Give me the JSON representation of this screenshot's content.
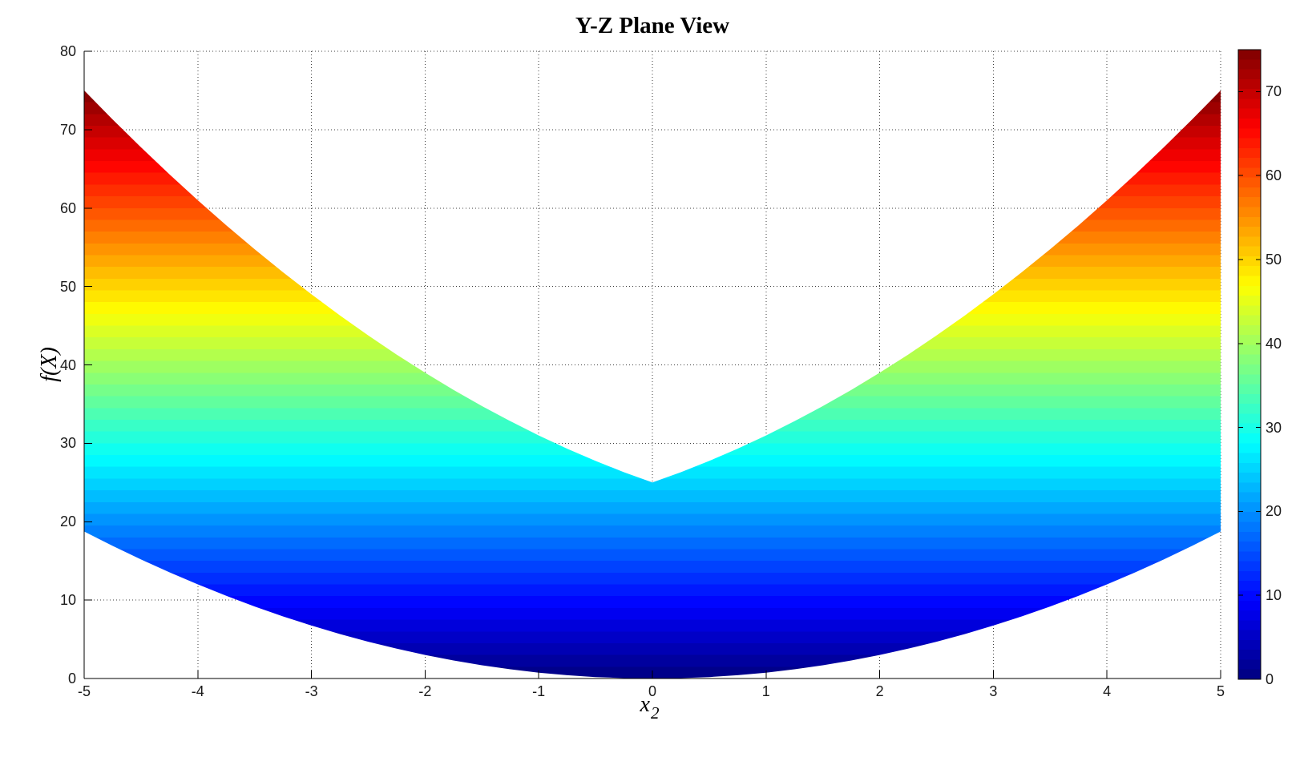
{
  "chart_data": {
    "type": "area",
    "title": "Y-Z Plane View",
    "xlabel": "x_2",
    "xlabel_base": "x",
    "xlabel_sub": "2",
    "ylabel": "f(X)",
    "xlim": [
      -5,
      5
    ],
    "ylim": [
      0,
      80
    ],
    "x_ticks": [
      -5,
      -4,
      -3,
      -2,
      -1,
      0,
      1,
      2,
      3,
      4,
      5
    ],
    "y_ticks": [
      0,
      10,
      20,
      30,
      40,
      50,
      60,
      70,
      80
    ],
    "grid": "dotted",
    "legend": "none",
    "colormap": "jet",
    "color_low": "#00008F",
    "color_high": "#800000",
    "color_range": [
      0,
      75
    ],
    "color_bands": 50,
    "colorbar_ticks": [
      0,
      10,
      20,
      30,
      40,
      50,
      60,
      70
    ],
    "description": "Side (Y-Z plane) projection of a quadratic surface: filled region between lower_edge and upper_edge versus x2, color-mapped by f(X) value with a jet colormap.",
    "x": [
      -5,
      -4.75,
      -4.5,
      -4.25,
      -4,
      -3.75,
      -3.5,
      -3.25,
      -3,
      -2.75,
      -2.5,
      -2.25,
      -2,
      -1.75,
      -1.5,
      -1.25,
      -1,
      -0.75,
      -0.5,
      -0.25,
      0,
      0.25,
      0.5,
      0.75,
      1,
      1.25,
      1.5,
      1.75,
      2,
      2.25,
      2.5,
      2.75,
      3,
      3.25,
      3.5,
      3.75,
      4,
      4.25,
      4.5,
      4.75,
      5
    ],
    "upper_edge": [
      75,
      71.3125,
      67.75,
      64.3125,
      61,
      57.8125,
      54.75,
      51.8125,
      49,
      46.3125,
      43.75,
      41.3125,
      39,
      36.8125,
      34.75,
      32.8125,
      31,
      29.3125,
      27.75,
      26.3125,
      25,
      26.3125,
      27.75,
      29.3125,
      31,
      32.8125,
      34.75,
      36.8125,
      39,
      41.3125,
      43.75,
      46.3125,
      49,
      51.8125,
      54.75,
      57.8125,
      61,
      64.3125,
      67.75,
      71.3125,
      75
    ],
    "lower_edge": [
      18.75,
      16.9219,
      15.1875,
      13.5469,
      12,
      10.5469,
      9.1875,
      7.9219,
      6.75,
      5.6719,
      4.6875,
      3.7969,
      3,
      2.2969,
      1.6875,
      1.1719,
      0.75,
      0.4219,
      0.1875,
      0.0469,
      0,
      0.0469,
      0.1875,
      0.4219,
      0.75,
      1.1719,
      1.6875,
      2.2969,
      3,
      3.7969,
      4.6875,
      5.6719,
      6.75,
      7.9219,
      9.1875,
      10.5469,
      12,
      13.5469,
      15.1875,
      16.9219,
      18.75
    ]
  }
}
